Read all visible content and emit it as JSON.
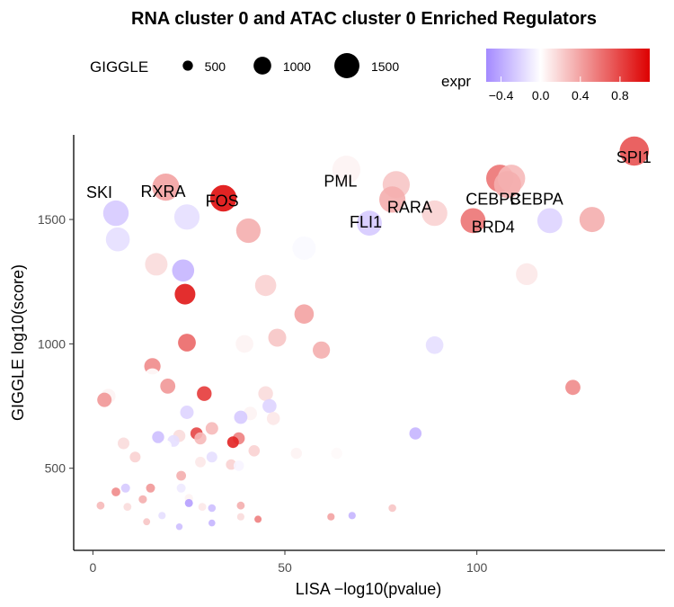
{
  "chart_data": {
    "type": "scatter",
    "title": "RNA cluster 0 and ATAC cluster 0 Enriched Regulators",
    "xlabel": "LISA −log10(pvalue)",
    "ylabel": "GIGGLE log10(score)",
    "xlim": [
      -5,
      149
    ],
    "ylim": [
      170,
      1840
    ],
    "x_ticks": [
      0,
      50,
      100
    ],
    "y_ticks": [
      500,
      1000,
      1500
    ],
    "grid": false,
    "size_legend": {
      "title": "GIGGLE",
      "values": [
        500,
        1000,
        1500
      ],
      "labels": [
        "500",
        "1000",
        "1500"
      ]
    },
    "color_legend": {
      "title": "expr",
      "min": -0.55,
      "max": 1.1,
      "ticks": [
        -0.4,
        0.0,
        0.4,
        0.8
      ],
      "tick_labels": [
        "−0.4",
        "0.0",
        "0.4",
        "0.8"
      ],
      "low_color": "#a48aff",
      "mid_color": "#ffffff",
      "high_color": "#dd0000"
    },
    "points": [
      {
        "x": 141.0,
        "y": 1775,
        "expr": 0.75,
        "label": "SPI1"
      },
      {
        "x": 79.0,
        "y": 1640,
        "expr": 0.25,
        "label": "RARA"
      },
      {
        "x": 78.0,
        "y": 1580,
        "expr": 0.35
      },
      {
        "x": 66.0,
        "y": 1700,
        "expr": 0.05,
        "label": "PML"
      },
      {
        "x": 106.0,
        "y": 1665,
        "expr": 0.6,
        "label": "CEBPB"
      },
      {
        "x": 109.0,
        "y": 1665,
        "expr": 0.3,
        "label": "CEBPA"
      },
      {
        "x": 108.0,
        "y": 1640,
        "expr": 0.35,
        "label": "BRD4"
      },
      {
        "x": 72.0,
        "y": 1485,
        "expr": -0.25,
        "label": "FLI1"
      },
      {
        "x": 34.0,
        "y": 1585,
        "expr": 1.05,
        "label": "FOS"
      },
      {
        "x": 19.0,
        "y": 1630,
        "expr": 0.4,
        "label": "RXRA"
      },
      {
        "x": 6.0,
        "y": 1525,
        "expr": -0.25,
        "label": "SKI"
      },
      {
        "x": 6.5,
        "y": 1420,
        "expr": -0.15
      },
      {
        "x": 24.5,
        "y": 1510,
        "expr": -0.15
      },
      {
        "x": 40.5,
        "y": 1455,
        "expr": 0.35
      },
      {
        "x": 55.0,
        "y": 1385,
        "expr": -0.03
      },
      {
        "x": 16.5,
        "y": 1320,
        "expr": 0.15
      },
      {
        "x": 23.5,
        "y": 1295,
        "expr": -0.35
      },
      {
        "x": 24.0,
        "y": 1200,
        "expr": 1.0
      },
      {
        "x": 45.0,
        "y": 1235,
        "expr": 0.2
      },
      {
        "x": 55.0,
        "y": 1120,
        "expr": 0.4
      },
      {
        "x": 89.0,
        "y": 1525,
        "expr": 0.2
      },
      {
        "x": 99.0,
        "y": 1495,
        "expr": 0.6
      },
      {
        "x": 119.0,
        "y": 1495,
        "expr": -0.2
      },
      {
        "x": 130.0,
        "y": 1500,
        "expr": 0.35
      },
      {
        "x": 113.0,
        "y": 1280,
        "expr": 0.1
      },
      {
        "x": 24.5,
        "y": 1005,
        "expr": 0.65
      },
      {
        "x": 39.5,
        "y": 1000,
        "expr": 0.05
      },
      {
        "x": 48.0,
        "y": 1025,
        "expr": 0.25
      },
      {
        "x": 59.5,
        "y": 975,
        "expr": 0.35
      },
      {
        "x": 89.0,
        "y": 995,
        "expr": -0.15
      },
      {
        "x": 15.5,
        "y": 910,
        "expr": 0.5
      },
      {
        "x": 15.5,
        "y": 870,
        "expr": 0.0
      },
      {
        "x": 19.5,
        "y": 830,
        "expr": 0.45
      },
      {
        "x": 29.0,
        "y": 800,
        "expr": 0.85
      },
      {
        "x": 45.0,
        "y": 800,
        "expr": 0.15
      },
      {
        "x": 3.0,
        "y": 775,
        "expr": 0.45
      },
      {
        "x": 46.0,
        "y": 750,
        "expr": -0.2
      },
      {
        "x": 125.0,
        "y": 825,
        "expr": 0.5
      },
      {
        "x": 24.5,
        "y": 725,
        "expr": -0.2
      },
      {
        "x": 38.5,
        "y": 705,
        "expr": -0.25
      },
      {
        "x": 41.0,
        "y": 720,
        "expr": 0.05
      },
      {
        "x": 47.0,
        "y": 700,
        "expr": 0.1
      },
      {
        "x": 31.0,
        "y": 660,
        "expr": 0.3
      },
      {
        "x": 27.0,
        "y": 640,
        "expr": 0.8
      },
      {
        "x": 22.5,
        "y": 630,
        "expr": 0.15
      },
      {
        "x": 17.0,
        "y": 625,
        "expr": -0.3
      },
      {
        "x": 21.0,
        "y": 610,
        "expr": -0.15
      },
      {
        "x": 28.0,
        "y": 620,
        "expr": 0.3
      },
      {
        "x": 38.0,
        "y": 620,
        "expr": 0.55
      },
      {
        "x": 36.5,
        "y": 605,
        "expr": 0.95
      },
      {
        "x": 42.0,
        "y": 570,
        "expr": 0.2
      },
      {
        "x": 84.0,
        "y": 640,
        "expr": -0.35
      },
      {
        "x": 4.0,
        "y": 790,
        "expr": 0.05
      },
      {
        "x": 8.0,
        "y": 600,
        "expr": 0.15
      },
      {
        "x": 11.0,
        "y": 545,
        "expr": 0.2
      },
      {
        "x": 19.0,
        "y": 590,
        "expr": 0.0
      },
      {
        "x": 28.0,
        "y": 525,
        "expr": 0.1
      },
      {
        "x": 31.0,
        "y": 545,
        "expr": -0.15
      },
      {
        "x": 36.0,
        "y": 515,
        "expr": 0.2
      },
      {
        "x": 38.0,
        "y": 510,
        "expr": -0.05
      },
      {
        "x": 23.0,
        "y": 470,
        "expr": 0.35
      },
      {
        "x": 15.0,
        "y": 420,
        "expr": 0.45
      },
      {
        "x": 8.5,
        "y": 420,
        "expr": -0.25
      },
      {
        "x": 6.0,
        "y": 405,
        "expr": 0.5
      },
      {
        "x": 13.0,
        "y": 375,
        "expr": 0.35
      },
      {
        "x": 23.0,
        "y": 420,
        "expr": -0.1
      },
      {
        "x": 25.0,
        "y": 380,
        "expr": 0.05
      },
      {
        "x": 25.0,
        "y": 360,
        "expr": -0.45
      },
      {
        "x": 28.5,
        "y": 345,
        "expr": 0.1
      },
      {
        "x": 31.0,
        "y": 340,
        "expr": -0.3
      },
      {
        "x": 38.5,
        "y": 350,
        "expr": 0.35
      },
      {
        "x": 2.0,
        "y": 350,
        "expr": 0.3
      },
      {
        "x": 9.0,
        "y": 345,
        "expr": 0.15
      },
      {
        "x": 18.0,
        "y": 310,
        "expr": -0.15
      },
      {
        "x": 14.0,
        "y": 285,
        "expr": 0.25
      },
      {
        "x": 22.5,
        "y": 265,
        "expr": -0.3
      },
      {
        "x": 31.0,
        "y": 280,
        "expr": -0.35
      },
      {
        "x": 38.5,
        "y": 305,
        "expr": 0.15
      },
      {
        "x": 43.0,
        "y": 295,
        "expr": 0.55
      },
      {
        "x": 62.0,
        "y": 305,
        "expr": 0.4
      },
      {
        "x": 67.5,
        "y": 310,
        "expr": -0.35
      },
      {
        "x": 78.0,
        "y": 340,
        "expr": 0.25
      },
      {
        "x": 53.0,
        "y": 560,
        "expr": 0.05
      },
      {
        "x": 63.5,
        "y": 560,
        "expr": 0.02
      }
    ]
  }
}
